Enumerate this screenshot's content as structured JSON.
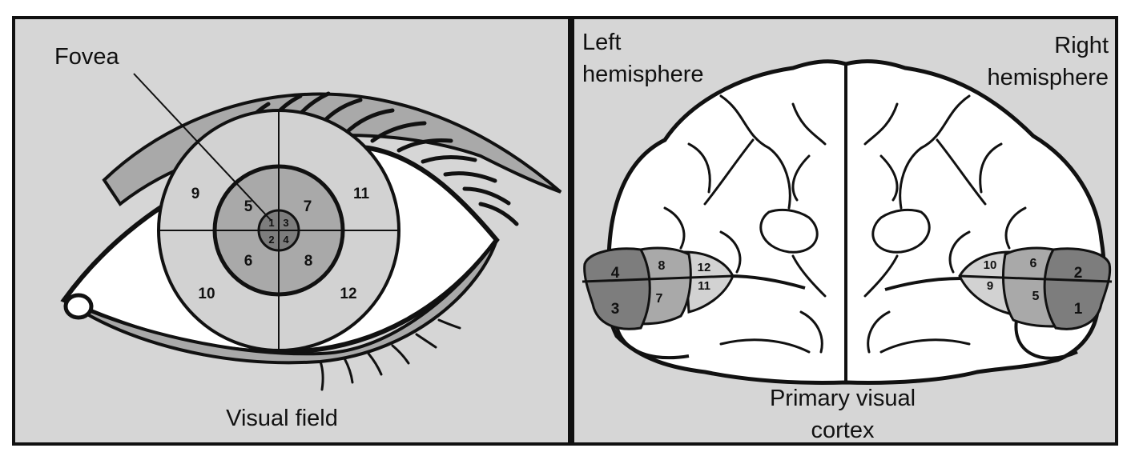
{
  "left_panel": {
    "fovea_label": "Fovea",
    "caption": "Visual field",
    "fovea_numbers": [
      "1",
      "2",
      "3",
      "4"
    ],
    "inner_ring_numbers": [
      "5",
      "6",
      "7",
      "8"
    ],
    "outer_ring_numbers": [
      "9",
      "10",
      "11",
      "12"
    ]
  },
  "right_panel": {
    "left_hemisphere_line1": "Left",
    "left_hemisphere_line2": "hemisphere",
    "right_hemisphere_line1": "Right",
    "right_hemisphere_line2": "hemisphere",
    "caption_line1": "Primary visual",
    "caption_line2": "cortex",
    "left_cortex_numbers": [
      "4",
      "3",
      "8",
      "7",
      "12",
      "11"
    ],
    "right_cortex_numbers": [
      "2",
      "1",
      "6",
      "5",
      "10",
      "9"
    ]
  },
  "colors": {
    "panel_bg": "#d6d6d6",
    "region_dark": "#7d7d7d",
    "region_mid": "#a9a9a9",
    "region_light": "#d2d2d2",
    "white": "#ffffff"
  }
}
